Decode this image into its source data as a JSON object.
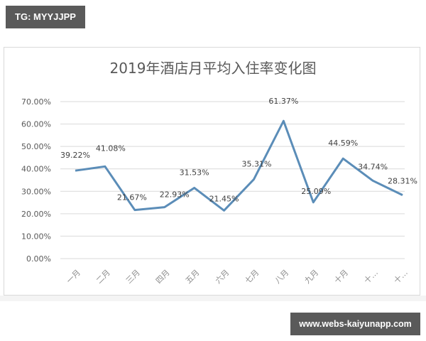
{
  "watermark_top": "TG: MYYJJPP",
  "watermark_bottom": "www.webs-kaiyunapp.com",
  "colors": {
    "line": "#5b8db8",
    "grid": "#d9d9d9",
    "badge_bg": "#5a5a5a"
  },
  "chart_data": {
    "type": "line",
    "title": "2019年酒店月平均入住率变化图",
    "xlabel": "",
    "ylabel": "",
    "categories": [
      "一月",
      "二月",
      "三月",
      "四月",
      "五月",
      "六月",
      "七月",
      "八月",
      "九月",
      "十月",
      "十一月",
      "十二月"
    ],
    "category_display": [
      "一月",
      "二月",
      "三月",
      "四月",
      "五月",
      "六月",
      "七月",
      "八月",
      "九月",
      "十月",
      "十…",
      "十…"
    ],
    "series": [
      {
        "name": "月平均入住率",
        "values": [
          39.22,
          41.08,
          21.67,
          22.93,
          31.53,
          21.45,
          35.31,
          61.37,
          25.09,
          44.59,
          34.74,
          28.31
        ]
      }
    ],
    "data_labels": [
      "39.22%",
      "41.08%",
      "21.67%",
      "22.93%",
      "31.53%",
      "21.45%",
      "35.31%",
      "61.37%",
      "25.09%",
      "44.59%",
      "34.74%",
      "28.31%"
    ],
    "yticks": [
      "0.00%",
      "10.00%",
      "20.00%",
      "30.00%",
      "40.00%",
      "50.00%",
      "60.00%",
      "70.00%"
    ],
    "ylim": [
      0,
      70
    ],
    "grid": true,
    "legend": "none"
  }
}
